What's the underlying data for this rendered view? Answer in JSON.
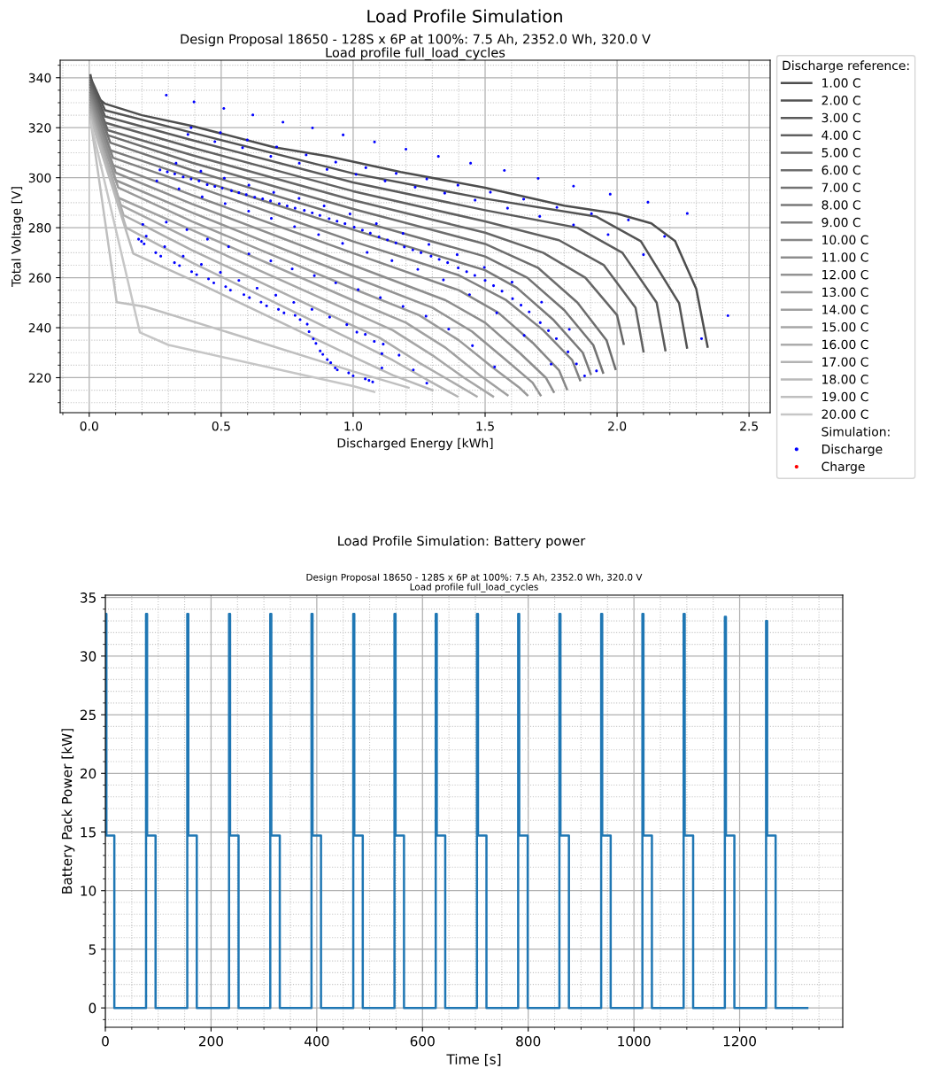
{
  "chart_data": [
    {
      "type": "line",
      "title": "Load Profile Simulation",
      "subtitle": "Design Proposal 18650 - 128S x 6P at 100%: 7.5 Ah, 2352.0 Wh, 320.0 V\nLoad profile full_load_cycles",
      "xlabel": "Discharged Energy [kWh]",
      "ylabel": "Total Voltage [V]",
      "legend_title": "Discharge reference:",
      "annotations": [
        "Simulation:"
      ],
      "xlim": [
        -0.11,
        2.58
      ],
      "ylim": [
        206,
        347
      ],
      "xticks": [
        {
          "value": -0.1,
          "label": null
        },
        {
          "value": 0,
          "label": "0.0"
        },
        {
          "value": 0.1,
          "label": null
        },
        {
          "value": 0.2,
          "label": null
        },
        {
          "value": 0.3,
          "label": null
        },
        {
          "value": 0.4,
          "label": null
        },
        {
          "value": 0.5,
          "label": "0.5"
        },
        {
          "value": 0.6,
          "label": null
        },
        {
          "value": 0.7,
          "label": null
        },
        {
          "value": 0.8,
          "label": null
        },
        {
          "value": 0.9,
          "label": null
        },
        {
          "value": 1.0,
          "label": "1.0"
        },
        {
          "value": 1.1,
          "label": null
        },
        {
          "value": 1.2,
          "label": null
        },
        {
          "value": 1.3,
          "label": null
        },
        {
          "value": 1.4,
          "label": null
        },
        {
          "value": 1.5,
          "label": "1.5"
        },
        {
          "value": 1.6,
          "label": null
        },
        {
          "value": 1.7,
          "label": null
        },
        {
          "value": 1.8,
          "label": null
        },
        {
          "value": 1.9,
          "label": null
        },
        {
          "value": 2.0,
          "label": "2.0"
        },
        {
          "value": 2.1,
          "label": null
        },
        {
          "value": 2.2,
          "label": null
        },
        {
          "value": 2.3,
          "label": null
        },
        {
          "value": 2.4,
          "label": null
        },
        {
          "value": 2.5,
          "label": "2.5"
        }
      ],
      "yticks": [
        {
          "value": 210,
          "label": null
        },
        {
          "value": 215,
          "label": null
        },
        220,
        {
          "value": 225,
          "label": null
        },
        {
          "value": 230,
          "label": null
        },
        {
          "value": 235,
          "label": null
        },
        240,
        {
          "value": 245,
          "label": null
        },
        {
          "value": 250,
          "label": null
        },
        {
          "value": 255,
          "label": null
        },
        260,
        {
          "value": 265,
          "label": null
        },
        {
          "value": 270,
          "label": null
        },
        {
          "value": 275,
          "label": null
        },
        280,
        {
          "value": 285,
          "label": null
        },
        {
          "value": 290,
          "label": null
        },
        {
          "value": 295,
          "label": null
        },
        300,
        {
          "value": 305,
          "label": null
        },
        {
          "value": 310,
          "label": null
        },
        {
          "value": 315,
          "label": null
        },
        320,
        {
          "value": 325,
          "label": null
        },
        {
          "value": 330,
          "label": null
        },
        {
          "value": 335,
          "label": null
        },
        340,
        {
          "value": 345,
          "label": null
        }
      ],
      "grid": true,
      "legend": "right",
      "series": [
        {
          "name": "1.00 C",
          "color": "#4d4d4d",
          "x": [
            0.005,
            0.02,
            0.06,
            0.2,
            0.39,
            0.7,
            0.91,
            1.18,
            1.5,
            1.8,
            2.0,
            2.13,
            2.22,
            2.3,
            2.343
          ],
          "values": [
            341,
            333,
            329.6,
            325,
            320.7,
            312.2,
            308.5,
            302.3,
            296,
            288.8,
            285.6,
            281.7,
            274.6,
            255.5,
            232.4
          ]
        },
        {
          "name": "2.00 C",
          "color": "#535353",
          "x": [
            0.005,
            0.06,
            0.39,
            1.0,
            1.5,
            1.92,
            2.09,
            2.235,
            2.265
          ],
          "values": [
            340,
            327,
            318,
            301.7,
            291.6,
            284.5,
            274.6,
            249.8,
            232
          ]
        },
        {
          "name": "3.00 C",
          "color": "#5a5a5a",
          "x": [
            0.005,
            0.06,
            0.39,
            1.0,
            1.5,
            1.85,
            2.02,
            2.15,
            2.183
          ],
          "values": [
            339,
            324.5,
            315,
            298.1,
            287,
            280,
            270,
            250,
            231
          ]
        },
        {
          "name": "4.00 C",
          "color": "#606060",
          "x": [
            0.005,
            0.06,
            0.39,
            1.0,
            1.5,
            1.78,
            1.95,
            2.07,
            2.1
          ],
          "values": [
            338,
            322,
            312,
            294.6,
            282.5,
            275,
            265,
            248,
            230.5
          ]
        },
        {
          "name": "5.00 C",
          "color": "#666666",
          "x": [
            0.005,
            0.07,
            0.39,
            1.0,
            1.5,
            1.72,
            1.88,
            2.0,
            2.025
          ],
          "values": [
            337,
            319,
            309,
            291,
            278,
            270,
            260,
            245,
            233.5
          ]
        },
        {
          "name": "6.00 C",
          "color": "#6d6d6d",
          "x": [
            0.005,
            0.07,
            0.39,
            1.0,
            1.5,
            1.7,
            1.85,
            1.96,
            1.994
          ],
          "values": [
            336,
            317,
            306,
            287.5,
            273.5,
            264,
            250,
            235,
            223.5
          ]
        },
        {
          "name": "7.00 C",
          "color": "#737373",
          "x": [
            0.005,
            0.08,
            0.39,
            1.0,
            1.5,
            1.66,
            1.8,
            1.91,
            1.947
          ],
          "values": [
            335,
            314,
            303,
            283.4,
            268.5,
            260,
            247,
            233,
            222
          ]
        },
        {
          "name": "8.00 C",
          "color": "#797979",
          "x": [
            0.005,
            0.08,
            0.39,
            1.0,
            1.5,
            1.62,
            1.76,
            1.87,
            1.9
          ],
          "values": [
            334,
            311,
            300,
            279.2,
            263,
            256,
            243,
            230,
            221.5
          ]
        },
        {
          "name": "9.00 C",
          "color": "#808080",
          "x": [
            0.005,
            0.09,
            0.39,
            1.0,
            1.4,
            1.58,
            1.72,
            1.83,
            1.86
          ],
          "values": [
            333,
            308,
            297,
            274.5,
            261,
            251,
            239,
            227,
            219
          ]
        },
        {
          "name": "10.00 C",
          "color": "#868686",
          "x": [
            0.005,
            0.09,
            0.39,
            1.0,
            1.4,
            1.55,
            1.68,
            1.78,
            1.81
          ],
          "values": [
            332,
            305,
            293,
            269.8,
            255,
            246,
            234,
            223,
            215.4
          ]
        },
        {
          "name": "11.00 C",
          "color": "#8d8d8d",
          "x": [
            0.005,
            0.1,
            0.39,
            1.0,
            1.35,
            1.5,
            1.63,
            1.73,
            1.76
          ],
          "values": [
            331,
            302,
            289.5,
            265,
            251,
            242,
            230,
            220,
            214.3
          ]
        },
        {
          "name": "12.00 C",
          "color": "#939393",
          "x": [
            0.005,
            0.1,
            0.39,
            1.0,
            1.3,
            1.45,
            1.58,
            1.68,
            1.71
          ],
          "values": [
            330,
            299,
            286,
            260.3,
            248,
            238.5,
            227,
            218,
            213
          ]
        },
        {
          "name": "13.00 C",
          "color": "#999999",
          "x": [
            0.005,
            0.11,
            0.39,
            1.0,
            1.25,
            1.4,
            1.53,
            1.63,
            1.66
          ],
          "values": [
            329,
            296,
            282.5,
            255.6,
            245,
            235,
            224,
            216,
            213
          ]
        },
        {
          "name": "14.00 C",
          "color": "#a0a0a0",
          "x": [
            0.005,
            0.11,
            0.39,
            1.0,
            1.2,
            1.35,
            1.48,
            1.585
          ],
          "values": [
            328,
            292,
            279,
            250.9,
            242,
            232,
            221,
            213
          ]
        },
        {
          "name": "15.00 C",
          "color": "#a6a6a6",
          "x": [
            0.005,
            0.12,
            0.39,
            1.0,
            1.15,
            1.3,
            1.42,
            1.53
          ],
          "values": [
            327,
            289,
            275,
            246.1,
            239,
            229,
            220,
            212.5
          ]
        },
        {
          "name": "16.00 C",
          "color": "#acacac",
          "x": [
            0.005,
            0.13,
            0.39,
            1.0,
            1.1,
            1.25,
            1.38,
            1.468
          ],
          "values": [
            326,
            285,
            271,
            240.8,
            236,
            226,
            218,
            212.5
          ]
        },
        {
          "name": "17.00 C",
          "color": "#b3b3b3",
          "x": [
            0.005,
            0.14,
            0.39,
            1.0,
            1.15,
            1.3,
            1.395
          ],
          "values": [
            325,
            280,
            266,
            234.9,
            227,
            218,
            212.5
          ]
        },
        {
          "name": "18.00 C",
          "color": "#b9b9b9",
          "x": [
            0.005,
            0.167,
            0.39,
            1.0,
            1.15,
            1.3
          ],
          "values": [
            324,
            269.6,
            259,
            228.4,
            221,
            215
          ]
        },
        {
          "name": "19.00 C",
          "color": "#bfbfbf",
          "x": [
            0.005,
            0.104,
            0.21,
            0.5,
            1.0,
            1.21
          ],
          "values": [
            323,
            250.2,
            248.4,
            239,
            222.5,
            216
          ]
        },
        {
          "name": "20.00 C",
          "color": "#c6c6c6",
          "x": [
            0.005,
            0.192,
            0.3,
            1.0,
            1.08
          ],
          "values": [
            322.5,
            238.1,
            233.1,
            216.6,
            214.3
          ]
        },
        {
          "name": "Discharge",
          "type": "scatter",
          "marker": "circle",
          "color": "#0000ff",
          "x": [
            0.292,
            0.397,
            0.51,
            0.62,
            0.734,
            0.846,
            0.962,
            1.081,
            1.2,
            1.323,
            1.445,
            1.573,
            1.701,
            1.835,
            1.974,
            2.117,
            2.266,
            2.32,
            2.42,
            0.386,
            0.374,
            0.497,
            0.476,
            0.599,
            0.581,
            0.71,
            0.688,
            0.822,
            0.796,
            0.934,
            0.901,
            1.048,
            1.011,
            1.163,
            1.121,
            1.279,
            1.235,
            1.397,
            1.347,
            1.52,
            1.462,
            1.646,
            1.585,
            1.772,
            1.707,
            1.903,
            1.835,
            2.043,
            1.966,
            2.18,
            2.1,
            0.329,
            0.256,
            0.423,
            0.34,
            0.512,
            0.428,
            0.605,
            0.515,
            0.699,
            0.604,
            0.795,
            0.69,
            0.89,
            0.778,
            0.988,
            0.869,
            1.088,
            0.96,
            1.189,
            1.053,
            1.287,
            1.147,
            1.394,
            1.245,
            1.342,
            1.497,
            1.441,
            1.602,
            1.544,
            1.714,
            1.648,
            1.819,
            1.75,
            1.922,
            0.268,
            0.296,
            0.324,
            0.356,
            0.386,
            0.416,
            0.447,
            0.476,
            0.504,
            0.539,
            0.567,
            0.595,
            0.627,
            0.657,
            0.687,
            0.72,
            0.75,
            0.78,
            0.815,
            0.845,
            0.874,
            0.909,
            0.939,
            0.969,
            1.004,
            1.035,
            1.065,
            1.098,
            1.13,
            1.162,
            1.194,
            1.226,
            1.257,
            1.295,
            1.326,
            1.358,
            1.398,
            1.43,
            1.461,
            1.5,
            1.532,
            1.564,
            1.604,
            1.636,
            1.667,
            1.709,
            1.74,
            1.77,
            1.814,
            1.846,
            1.877,
            0.187,
            0.198,
            0.208,
            0.252,
            0.271,
            0.323,
            0.342,
            0.388,
            0.407,
            0.452,
            0.472,
            0.517,
            0.535,
            0.586,
            0.607,
            0.651,
            0.672,
            0.717,
            0.738,
            0.78,
            0.799,
            0.826,
            0.833,
            0.849,
            0.859,
            0.875,
            0.885,
            0.902,
            0.915,
            0.932,
            0.94,
            0.983,
            1.0,
            1.046,
            1.06,
            1.074,
            0.203,
            0.216,
            0.292,
            0.286,
            0.37,
            0.356,
            0.448,
            0.425,
            0.528,
            0.497,
            0.605,
            0.567,
            0.688,
            0.636,
            0.769,
            0.707,
            0.853,
            0.775,
            0.934,
            0.844,
            1.019,
            0.911,
            1.103,
            0.976,
            1.189,
            1.014,
            1.276,
            1.046,
            1.362,
            1.08,
            1.114,
            1.109,
            1.174,
            1.109,
            1.228,
            1.279,
            1.452,
            1.536
          ],
          "values": [
            333.0,
            330.3,
            327.7,
            325.1,
            322.2,
            319.9,
            317.1,
            314.3,
            311.4,
            308.5,
            305.8,
            302.9,
            299.7,
            296.6,
            293.4,
            290.2,
            285.7,
            235.6,
            244.8,
            320,
            317.3,
            318,
            314.4,
            315.1,
            312,
            312.3,
            308.5,
            309.1,
            305.8,
            306.2,
            303.3,
            304,
            301.3,
            301.7,
            298.7,
            299.5,
            296.2,
            297,
            293.8,
            294.2,
            291,
            291.4,
            287.8,
            288.1,
            284.5,
            285.6,
            281.1,
            283.1,
            277.2,
            276.5,
            269.2,
            305.8,
            298.7,
            302.6,
            295.5,
            299.8,
            292.3,
            297,
            289.6,
            294.1,
            286.6,
            291.7,
            283.7,
            288.7,
            280.4,
            285.5,
            277.2,
            281.6,
            273.7,
            277.7,
            270.1,
            273.3,
            266.8,
            269.2,
            263.3,
            259.1,
            264.1,
            253.2,
            258.2,
            245.9,
            250.2,
            236.9,
            239.3,
            225.4,
            222.7,
            303.1,
            302.3,
            301.5,
            300.3,
            299.5,
            298.7,
            297.2,
            296.5,
            295.8,
            294.8,
            294.0,
            293.2,
            292.2,
            291.5,
            290.7,
            289.6,
            288.7,
            287.8,
            286.9,
            285.9,
            284.9,
            283.6,
            282.6,
            281.6,
            280.2,
            279.0,
            277.8,
            276.3,
            275.1,
            273.9,
            272.3,
            271.1,
            270.0,
            268.6,
            267.3,
            266.0,
            263.9,
            262.4,
            260.9,
            258.9,
            256.8,
            254.6,
            251.6,
            249.0,
            246.3,
            242.0,
            238.8,
            235.6,
            230.3,
            225.5,
            220.7,
            275.4,
            274.5,
            273.5,
            270.0,
            268.6,
            266.0,
            264.8,
            262.4,
            261.2,
            259.5,
            257.9,
            256.4,
            255.0,
            253.2,
            252.0,
            250.2,
            248.7,
            247.3,
            245.9,
            244.9,
            243.2,
            241.4,
            238.4,
            235.5,
            233.7,
            230.7,
            229.3,
            227.2,
            226.0,
            223.9,
            223.1,
            221.9,
            220.7,
            219.5,
            218.9,
            218.3,
            281.3,
            276.6,
            282.2,
            272.4,
            279.2,
            268.6,
            275.4,
            265.3,
            272.4,
            262.1,
            269.5,
            258.9,
            266.7,
            255.8,
            263.5,
            253,
            260.8,
            250.1,
            257.9,
            247.3,
            255.2,
            244.2,
            252,
            241.2,
            248.5,
            238.2,
            244.6,
            237.3,
            239.4,
            234.5,
            233.4,
            229.6,
            229,
            223.9,
            223.1,
            217.8,
            232.8,
            224.3
          ]
        },
        {
          "name": "Charge",
          "type": "scatter",
          "marker": "circle",
          "color": "#ff0000"
        }
      ]
    },
    {
      "type": "step",
      "title": "Load Profile Simulation: Battery power",
      "subtitle": "Design Proposal 18650 - 128S x 6P at 100%: 7.5 Ah, 2352.0 Wh, 320.0 V\nLoad profile full_load_cycles",
      "xlabel": "Time [s]",
      "ylabel": "Battery Pack Power [kW]",
      "color": "#1f77b4",
      "x": [
        0,
        2,
        17,
        77,
        79,
        95,
        155,
        157,
        173,
        234,
        236,
        252,
        312,
        314,
        330,
        390,
        392,
        408,
        469,
        471,
        487,
        547,
        549,
        565,
        625,
        627,
        643,
        703,
        705,
        721,
        781,
        783,
        799,
        859,
        861,
        877,
        938,
        940,
        956,
        1016,
        1018,
        1034,
        1094,
        1096,
        1112,
        1172,
        1174,
        1190,
        1250,
        1252,
        1268,
        1328
      ],
      "values": [
        33.6,
        14.7,
        0,
        33.6,
        14.7,
        0,
        33.6,
        14.7,
        0,
        33.6,
        14.7,
        0,
        33.6,
        14.7,
        0,
        33.6,
        14.7,
        0,
        33.6,
        14.7,
        0,
        33.6,
        14.7,
        0,
        33.6,
        14.7,
        0,
        33.6,
        14.7,
        0,
        33.6,
        14.7,
        0,
        33.6,
        14.7,
        0,
        33.6,
        14.7,
        0,
        33.6,
        14.7,
        0,
        33.6,
        14.7,
        0,
        33.35,
        14.7,
        0,
        33.0,
        14.7,
        0,
        0
      ],
      "xlim": [
        0,
        1395
      ],
      "ylim": [
        -1.65,
        35.2
      ],
      "xticks": [
        0,
        {
          "value": 50,
          "label": null
        },
        {
          "value": 100,
          "label": null
        },
        {
          "value": 150,
          "label": null
        },
        200,
        {
          "value": 250,
          "label": null
        },
        {
          "value": 300,
          "label": null
        },
        {
          "value": 350,
          "label": null
        },
        400,
        {
          "value": 450,
          "label": null
        },
        {
          "value": 500,
          "label": null
        },
        {
          "value": 550,
          "label": null
        },
        600,
        {
          "value": 650,
          "label": null
        },
        {
          "value": 700,
          "label": null
        },
        {
          "value": 750,
          "label": null
        },
        800,
        {
          "value": 850,
          "label": null
        },
        {
          "value": 900,
          "label": null
        },
        {
          "value": 950,
          "label": null
        },
        1000,
        {
          "value": 1050,
          "label": null
        },
        {
          "value": 1100,
          "label": null
        },
        {
          "value": 1150,
          "label": null
        },
        1200,
        {
          "value": 1250,
          "label": null
        },
        {
          "value": 1300,
          "label": null
        },
        {
          "value": 1350,
          "label": null
        }
      ],
      "yticks": [
        {
          "value": -1,
          "label": null
        },
        0,
        {
          "value": 1,
          "label": null
        },
        {
          "value": 2,
          "label": null
        },
        {
          "value": 3,
          "label": null
        },
        {
          "value": 4,
          "label": null
        },
        5,
        {
          "value": 6,
          "label": null
        },
        {
          "value": 7,
          "label": null
        },
        {
          "value": 8,
          "label": null
        },
        {
          "value": 9,
          "label": null
        },
        10,
        {
          "value": 11,
          "label": null
        },
        {
          "value": 12,
          "label": null
        },
        {
          "value": 13,
          "label": null
        },
        {
          "value": 14,
          "label": null
        },
        15,
        {
          "value": 16,
          "label": null
        },
        {
          "value": 17,
          "label": null
        },
        {
          "value": 18,
          "label": null
        },
        {
          "value": 19,
          "label": null
        },
        20,
        {
          "value": 21,
          "label": null
        },
        {
          "value": 22,
          "label": null
        },
        {
          "value": 23,
          "label": null
        },
        {
          "value": 24,
          "label": null
        },
        25,
        {
          "value": 26,
          "label": null
        },
        {
          "value": 27,
          "label": null
        },
        {
          "value": 28,
          "label": null
        },
        {
          "value": 29,
          "label": null
        },
        30,
        {
          "value": 31,
          "label": null
        },
        {
          "value": 32,
          "label": null
        },
        {
          "value": 33,
          "label": null
        },
        {
          "value": 34,
          "label": null
        },
        35
      ],
      "grid": true
    }
  ]
}
